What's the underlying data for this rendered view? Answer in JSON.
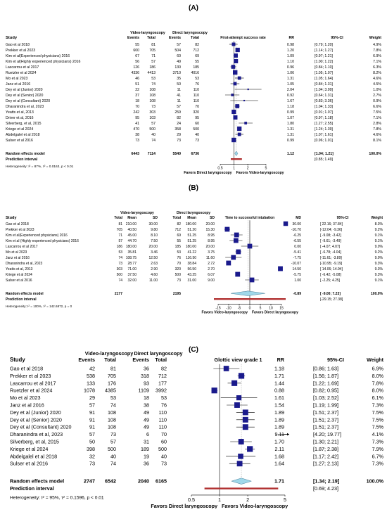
{
  "chart_data": [
    {
      "type": "forest",
      "panel_label": "(A)",
      "header": {
        "study": "Study",
        "group1": "Video-laryngoscopy",
        "group2": "Direct laryngoscopy",
        "events": "Events",
        "total": "Total",
        "plot_title": "First-attempt success rate",
        "est": "RR",
        "ci": "95%-CI",
        "weight": "Weight"
      },
      "scale": "log",
      "null_value": 1,
      "xlim": [
        0.5,
        5
      ],
      "ticks": [
        0.5,
        1,
        2,
        5
      ],
      "tick_labels": [
        "0.5",
        "1",
        "2",
        "5"
      ],
      "left_label": "Favors Direct laryngoscopy",
      "right_label": "Favors Video-laryngoscopy",
      "studies": [
        {
          "name": "Gao et al 2018",
          "c1": "55",
          "c2": "81",
          "c3": "57",
          "c4": "82",
          "est": 0.98,
          "lo": 0.79,
          "hi": 1.2,
          "est_t": "0.98",
          "ci_t": "[0.79; 1.20]",
          "w_t": "4.9%",
          "w": 4.9
        },
        {
          "name": "Prekker et al 2023",
          "c1": "600",
          "c2": "705",
          "c3": "504",
          "c4": "712",
          "est": 1.2,
          "lo": 1.14,
          "hi": 1.27,
          "est_t": "1.20",
          "ci_t": "[1.14; 1.27]",
          "w_t": "7.8%",
          "w": 7.8
        },
        {
          "name": "Kim et al(Experienced physicians) 2016",
          "c1": "67",
          "c2": "71",
          "c3": "60",
          "c4": "69",
          "est": 1.09,
          "lo": 0.97,
          "hi": 1.21,
          "est_t": "1.09",
          "ci_t": "[0.97; 1.21]",
          "w_t": "6.9%",
          "w": 6.9
        },
        {
          "name": "Kim et al(Highly experienced physicians) 2016",
          "c1": "56",
          "c2": "57",
          "c3": "49",
          "c4": "55",
          "est": 1.1,
          "lo": 1.0,
          "hi": 1.22,
          "est_t": "1.10",
          "ci_t": "[1.00; 1.22]",
          "w_t": "7.1%",
          "w": 7.1
        },
        {
          "name": "Lascarrou et al 2017",
          "c1": "126",
          "c2": "186",
          "c3": "130",
          "c4": "185",
          "est": 0.96,
          "lo": 0.84,
          "hi": 1.1,
          "est_t": "0.96",
          "ci_t": "[0.84; 1.10]",
          "w_t": "6.3%",
          "w": 6.3
        },
        {
          "name": "Ruetzler et al 2024",
          "c1": "4336",
          "c2": "4413",
          "c3": "3710",
          "c4": "4016",
          "est": 1.06,
          "lo": 1.05,
          "hi": 1.07,
          "est_t": "1.06",
          "ci_t": "[1.05; 1.07]",
          "w_t": "8.2%",
          "w": 8.2
        },
        {
          "name": "Mo et al 2023",
          "c1": "46",
          "c2": "53",
          "c3": "35",
          "c4": "53",
          "est": 1.31,
          "lo": 1.05,
          "hi": 1.64,
          "est_t": "1.31",
          "ci_t": "[1.05; 1.64]",
          "w_t": "4.6%",
          "w": 4.6
        },
        {
          "name": "Janz et al 2016",
          "c1": "51",
          "c2": "74",
          "c3": "50",
          "c4": "76",
          "est": 1.05,
          "lo": 0.84,
          "hi": 1.31,
          "est_t": "1.05",
          "ci_t": "[0.84; 1.31]",
          "w_t": "4.5%",
          "w": 4.5
        },
        {
          "name": "Dey et al (Junior) 2020",
          "c1": "22",
          "c2": "108",
          "c3": "11",
          "c4": "110",
          "est": 2.04,
          "lo": 1.04,
          "hi": 3.99,
          "est_t": "2.04",
          "ci_t": "[1.04; 3.99]",
          "w_t": "1.0%",
          "w": 1.0
        },
        {
          "name": "Dey et al (Senior) 2020",
          "c1": "37",
          "c2": "108",
          "c3": "41",
          "c4": "110",
          "est": 0.92,
          "lo": 0.64,
          "hi": 1.31,
          "est_t": "0.92",
          "ci_t": "[0.64; 1.31]",
          "w_t": "2.7%",
          "w": 2.7
        },
        {
          "name": "Dey et al (Consultant) 2020",
          "c1": "18",
          "c2": "108",
          "c3": "11",
          "c4": "110",
          "est": 1.67,
          "lo": 0.83,
          "hi": 3.36,
          "est_t": "1.67",
          "ci_t": "[0.83; 3.36]",
          "w_t": "0.9%",
          "w": 0.9
        },
        {
          "name": "Dharanindra et al, 2023",
          "c1": "70",
          "c2": "73",
          "c3": "57",
          "c4": "70",
          "est": 1.18,
          "lo": 1.04,
          "hi": 1.33,
          "est_t": "1.18",
          "ci_t": "[1.04; 1.33]",
          "w_t": "6.6%",
          "w": 6.6
        },
        {
          "name": "Yeatts et al, 2013",
          "c1": "242",
          "c2": "303",
          "c3": "259",
          "c4": "320",
          "est": 0.99,
          "lo": 0.91,
          "hi": 1.07,
          "est_t": "0.99",
          "ci_t": "[0.91; 1.07]",
          "w_t": "7.5%",
          "w": 7.5
        },
        {
          "name": "Driver et al, 2016",
          "c1": "95",
          "c2": "103",
          "c3": "82",
          "c4": "95",
          "est": 1.07,
          "lo": 0.97,
          "hi": 1.18,
          "est_t": "1.07",
          "ci_t": "[0.97; 1.18]",
          "w_t": "7.1%",
          "w": 7.1
        },
        {
          "name": "Silverberg, et al, 2015",
          "c1": "41",
          "c2": "57",
          "c3": "24",
          "c4": "60",
          "est": 1.8,
          "lo": 1.27,
          "hi": 2.55,
          "est_t": "1.80",
          "ci_t": "[1.27; 2.55]",
          "w_t": "2.8%",
          "w": 2.8
        },
        {
          "name": "Kriege et al 2024",
          "c1": "470",
          "c2": "500",
          "c3": "358",
          "c4": "500",
          "est": 1.31,
          "lo": 1.24,
          "hi": 1.39,
          "est_t": "1.31",
          "ci_t": "[1.24; 1.39]",
          "w_t": "7.8%",
          "w": 7.8
        },
        {
          "name": "Abdelgalel et al 2018",
          "c1": "38",
          "c2": "40",
          "c3": "29",
          "c4": "40",
          "est": 1.31,
          "lo": 1.07,
          "hi": 1.61,
          "est_t": "1.31",
          "ci_t": "[1.07; 1.61]",
          "w_t": "4.6%",
          "w": 4.6
        },
        {
          "name": "Sulser et al 2016",
          "c1": "73",
          "c2": "74",
          "c3": "73",
          "c4": "73",
          "est": 0.99,
          "lo": 0.96,
          "hi": 1.01,
          "est_t": "0.99",
          "ci_t": "[0.96; 1.01]",
          "w_t": "8.1%",
          "w": 8.1
        }
      ],
      "pooled": {
        "label": "Random effects model",
        "c1": "6443",
        "c2": "7114",
        "c3": "5540",
        "c4": "6736",
        "est": 1.12,
        "lo": 1.04,
        "hi": 1.21,
        "est_t": "1.12",
        "ci_t": "[1.04; 1.21]",
        "w_t": "100.0%"
      },
      "prediction": {
        "label": "Prediction interval",
        "lo": 0.85,
        "hi": 1.49,
        "ci_t": "[0.85; 1.49]"
      },
      "heterogeneity": "Heterogeneity: I² = 87%, τ² = 0.0163, p < 0.01"
    },
    {
      "type": "forest",
      "panel_label": "(B)",
      "header": {
        "study": "Study",
        "group1": "Video-laryngoscopy",
        "group2": "Direct laryngoscopy",
        "total": "Total",
        "mean": "Mean",
        "sd": "SD",
        "plot_title": "Time to successful intubation",
        "est": "MD",
        "ci": "95%-CI",
        "weight": "Weight"
      },
      "scale": "linear",
      "null_value": 0,
      "xlim": [
        -15,
        15
      ],
      "ticks": [
        -15,
        -10,
        -5,
        0,
        5,
        10,
        15
      ],
      "tick_labels": [
        "-15",
        "-10",
        "-5",
        "0",
        "5",
        "10",
        "15"
      ],
      "left_label": "Favors Video-laryngoscopy",
      "right_label": "Favors Direct laryngoscopy",
      "studies": [
        {
          "name": "Gao et al 2018",
          "c1": "81",
          "c2": "210.00",
          "c3": "30.00",
          "c4": "82",
          "c5": "180.00",
          "c6": "20.00",
          "est": 30.0,
          "lo": 22.16,
          "hi": 37.84,
          "est_t": "30.00",
          "ci_t": "[ 22.16; 37.84]",
          "w_t": "8.3%",
          "w": 8.3
        },
        {
          "name": "Prekker et al 2023",
          "c1": "705",
          "c2": "40.50",
          "c3": "9.80",
          "c4": "712",
          "c5": "51.20",
          "c6": "15.30",
          "est": -10.7,
          "lo": -12.04,
          "hi": -9.36,
          "est_t": "-10.70",
          "ci_t": "[-12.04; -9.36]",
          "w_t": "9.2%",
          "w": 9.2
        },
        {
          "name": "Kim et al(Experienced physicians) 2016",
          "c1": "71",
          "c2": "45.00",
          "c3": "8.10",
          "c4": "69",
          "c5": "51.25",
          "c6": "8.95",
          "est": -6.25,
          "lo": -9.08,
          "hi": -3.42,
          "est_t": "-6.25",
          "ci_t": "[ -9.08; -3.42]",
          "w_t": "9.1%",
          "w": 9.1
        },
        {
          "name": "Kim et al (Highly experienced physicians) 2016",
          "c1": "57",
          "c2": "44.70",
          "c3": "7.50",
          "c4": "55",
          "c5": "51.25",
          "c6": "8.95",
          "est": -6.55,
          "lo": -9.61,
          "hi": -3.49,
          "est_t": "-6.55",
          "ci_t": "[ -9.61; -3.49]",
          "w_t": "9.1%",
          "w": 9.1
        },
        {
          "name": "Lascarrou et al 2017",
          "c1": "186",
          "c2": "180.00",
          "c3": "20.00",
          "c4": "185",
          "c5": "180.00",
          "c6": "20.00",
          "est": 0.0,
          "lo": -4.07,
          "hi": 4.07,
          "est_t": "0.00",
          "ci_t": "[ -4.07; 4.07]",
          "w_t": "9.0%",
          "w": 9.0
        },
        {
          "name": "Mo et al 2023",
          "c1": "53",
          "c2": "35.81",
          "c3": "3.46",
          "c4": "53",
          "c5": "41.22",
          "c6": "3.75",
          "est": -5.41,
          "lo": -6.78,
          "hi": -4.04,
          "est_t": "-5.41",
          "ci_t": "[ -6.78; -4.04]",
          "w_t": "9.2%",
          "w": 9.2
        },
        {
          "name": "Janz et al 2016",
          "c1": "74",
          "c2": "108.75",
          "c3": "12.50",
          "c4": "76",
          "c5": "116.50",
          "c6": "11.60",
          "est": -7.75,
          "lo": -11.61,
          "hi": -3.89,
          "est_t": "-7.75",
          "ci_t": "[-11.61; -3.89]",
          "w_t": "9.0%",
          "w": 9.0
        },
        {
          "name": "Dharanindra et al, 2023",
          "c1": "73",
          "c2": "28.77",
          "c3": "2.63",
          "c4": "70",
          "c5": "38.84",
          "c6": "2.72",
          "est": -10.07,
          "lo": -10.95,
          "hi": -9.19,
          "est_t": "-10.07",
          "ci_t": "[-10.95; -9.19]",
          "w_t": "9.3%",
          "w": 9.3
        },
        {
          "name": "Yeatts et al, 2013",
          "c1": "303",
          "c2": "71.00",
          "c3": "2.90",
          "c4": "320",
          "c5": "56.50",
          "c6": "2.70",
          "est": 14.5,
          "lo": 14.06,
          "hi": 14.94,
          "est_t": "14.50",
          "ci_t": "[ 14.06; 14.94]",
          "w_t": "9.3%",
          "w": 9.3
        },
        {
          "name": "Kriege et al 2024",
          "c1": "500",
          "c2": "37.50",
          "c3": "4.60",
          "c4": "500",
          "c5": "43.25",
          "c6": "6.07",
          "est": -5.75,
          "lo": -6.42,
          "hi": -5.08,
          "est_t": "-5.75",
          "ci_t": "[ -6.42; -5.08]",
          "w_t": "9.3%",
          "w": 9.3
        },
        {
          "name": "Sulser et al 2016",
          "c1": "74",
          "c2": "32.00",
          "c3": "11.00",
          "c4": "73",
          "c5": "31.00",
          "c6": "9.00",
          "est": 1.0,
          "lo": -2.25,
          "hi": 4.25,
          "est_t": "1.00",
          "ci_t": "[ -2.25; 4.25]",
          "w_t": "9.1%",
          "w": 9.1
        }
      ],
      "pooled": {
        "label": "Random effects model",
        "c1": "2177",
        "c4": "2195",
        "est": -0.89,
        "lo": -9.0,
        "hi": 7.23,
        "est_t": "-0.89",
        "ci_t": "[ -9.00; 7.23]",
        "w_t": "100.0%"
      },
      "prediction": {
        "label": "Prediction interval",
        "lo": -29.15,
        "hi": 27.38,
        "ci_t": "[-29.15; 27.38]"
      },
      "heterogeneity": "Heterogeneity: I² = 100%, τ² = 142.6872, p = 0"
    },
    {
      "type": "forest",
      "panel_label": "(C)",
      "header": {
        "study": "Study",
        "group1": "Video-laryngoscopy",
        "group2": "Direct laryngoscopy",
        "events": "Events",
        "total": "Total",
        "plot_title": "Glottic view grade 1",
        "est": "RR",
        "ci": "95%-CI",
        "weight": "Weight"
      },
      "scale": "log",
      "null_value": 1,
      "xlim": [
        0.5,
        5
      ],
      "ticks": [
        0.5,
        1,
        2,
        5
      ],
      "tick_labels": [
        "0.5",
        "1",
        "2",
        "5"
      ],
      "left_label": "Favors Direct laryngoscopy",
      "right_label": "Favors Video-laryngoscopy",
      "studies": [
        {
          "name": "Gao et al 2018",
          "c1": "42",
          "c2": "81",
          "c3": "36",
          "c4": "82",
          "est": 1.18,
          "lo": 0.86,
          "hi": 1.63,
          "est_t": "1.18",
          "ci_t": "[0.86; 1.63]",
          "w_t": "6.9%",
          "w": 6.9
        },
        {
          "name": "Prekker et al 2023",
          "c1": "538",
          "c2": "705",
          "c3": "318",
          "c4": "712",
          "est": 1.71,
          "lo": 1.56,
          "hi": 1.87,
          "est_t": "1.71",
          "ci_t": "[1.56; 1.87]",
          "w_t": "8.0%",
          "w": 8.0
        },
        {
          "name": "Lascarrou et al 2017",
          "c1": "133",
          "c2": "176",
          "c3": "93",
          "c4": "177",
          "est": 1.44,
          "lo": 1.22,
          "hi": 1.69,
          "est_t": "1.44",
          "ci_t": "[1.22; 1.69]",
          "w_t": "7.8%",
          "w": 7.8
        },
        {
          "name": "Ruetzler et al 2024",
          "c1": "1078",
          "c2": "4385",
          "c3": "1109",
          "c4": "3992",
          "est": 0.88,
          "lo": 0.82,
          "hi": 0.95,
          "est_t": "0.88",
          "ci_t": "[0.82; 0.95]",
          "w_t": "8.0%",
          "w": 8.0
        },
        {
          "name": "Mo et al 2023",
          "c1": "29",
          "c2": "53",
          "c3": "18",
          "c4": "53",
          "est": 1.61,
          "lo": 1.03,
          "hi": 2.52,
          "est_t": "1.61",
          "ci_t": "[1.03; 2.52]",
          "w_t": "6.1%",
          "w": 6.1
        },
        {
          "name": "Janz et al 2016",
          "c1": "57",
          "c2": "74",
          "c3": "38",
          "c4": "76",
          "est": 1.54,
          "lo": 1.19,
          "hi": 1.99,
          "est_t": "1.54",
          "ci_t": "[1.19; 1.99]",
          "w_t": "7.3%",
          "w": 7.3
        },
        {
          "name": "Dey et al (Junior) 2020",
          "c1": "91",
          "c2": "108",
          "c3": "49",
          "c4": "110",
          "est": 1.89,
          "lo": 1.51,
          "hi": 2.37,
          "est_t": "1.89",
          "ci_t": "[1.51; 2.37]",
          "w_t": "7.5%",
          "w": 7.5
        },
        {
          "name": "Dey et al (Senior) 2020",
          "c1": "91",
          "c2": "108",
          "c3": "49",
          "c4": "110",
          "est": 1.89,
          "lo": 1.51,
          "hi": 2.37,
          "est_t": "1.89",
          "ci_t": "[1.51; 2.37]",
          "w_t": "7.5%",
          "w": 7.5
        },
        {
          "name": "Dey et al (Consultant) 2020",
          "c1": "91",
          "c2": "108",
          "c3": "49",
          "c4": "110",
          "est": 1.89,
          "lo": 1.51,
          "hi": 2.37,
          "est_t": "1.89",
          "ci_t": "[1.51; 2.37]",
          "w_t": "7.5%",
          "w": 7.5
        },
        {
          "name": "Dharanindra et al, 2023",
          "c1": "57",
          "c2": "73",
          "c3": "6",
          "c4": "70",
          "est": 9.11,
          "lo": 4.2,
          "hi": 19.77,
          "est_t": "9.11",
          "ci_t": "[4.20; 19.77]",
          "w_t": "4.1%",
          "w": 4.1,
          "arrow": true
        },
        {
          "name": "Silverberg, et al, 2015",
          "c1": "50",
          "c2": "57",
          "c3": "31",
          "c4": "60",
          "est": 1.7,
          "lo": 1.3,
          "hi": 2.21,
          "est_t": "1.70",
          "ci_t": "[1.30; 2.21]",
          "w_t": "7.3%",
          "w": 7.3
        },
        {
          "name": "Kriege et al 2024",
          "c1": "398",
          "c2": "500",
          "c3": "189",
          "c4": "500",
          "est": 2.11,
          "lo": 1.87,
          "hi": 2.38,
          "est_t": "2.11",
          "ci_t": "[1.87; 2.38]",
          "w_t": "7.9%",
          "w": 7.9
        },
        {
          "name": "Abdelgalel et al 2018",
          "c1": "32",
          "c2": "40",
          "c3": "19",
          "c4": "40",
          "est": 1.68,
          "lo": 1.17,
          "hi": 2.42,
          "est_t": "1.68",
          "ci_t": "[1.17; 2.42]",
          "w_t": "6.7%",
          "w": 6.7
        },
        {
          "name": "Sulser et al 2016",
          "c1": "73",
          "c2": "74",
          "c3": "36",
          "c4": "73",
          "est": 1.64,
          "lo": 1.27,
          "hi": 2.13,
          "est_t": "1.64",
          "ci_t": "[1.27; 2.13]",
          "w_t": "7.3%",
          "w": 7.3
        }
      ],
      "pooled": {
        "label": "Random effects model",
        "c1": "2747",
        "c2": "6542",
        "c3": "2040",
        "c4": "6165",
        "est": 1.71,
        "lo": 1.34,
        "hi": 2.19,
        "est_t": "1.71",
        "ci_t": "[1.34; 2.19]",
        "w_t": "100.0%"
      },
      "prediction": {
        "label": "Prediction interval",
        "lo": 0.69,
        "hi": 4.23,
        "ci_t": "[0.69; 4.23]"
      },
      "heterogeneity": "Heterogeneity: I² = 95%, τ² = 0.1596, p < 0.01"
    }
  ],
  "colors": {
    "box": "#1a1a8c",
    "diamond": "#9fd8ea",
    "prediction": "#b03030",
    "axis": "#000000",
    "ref_line": "#9a9a9a"
  }
}
